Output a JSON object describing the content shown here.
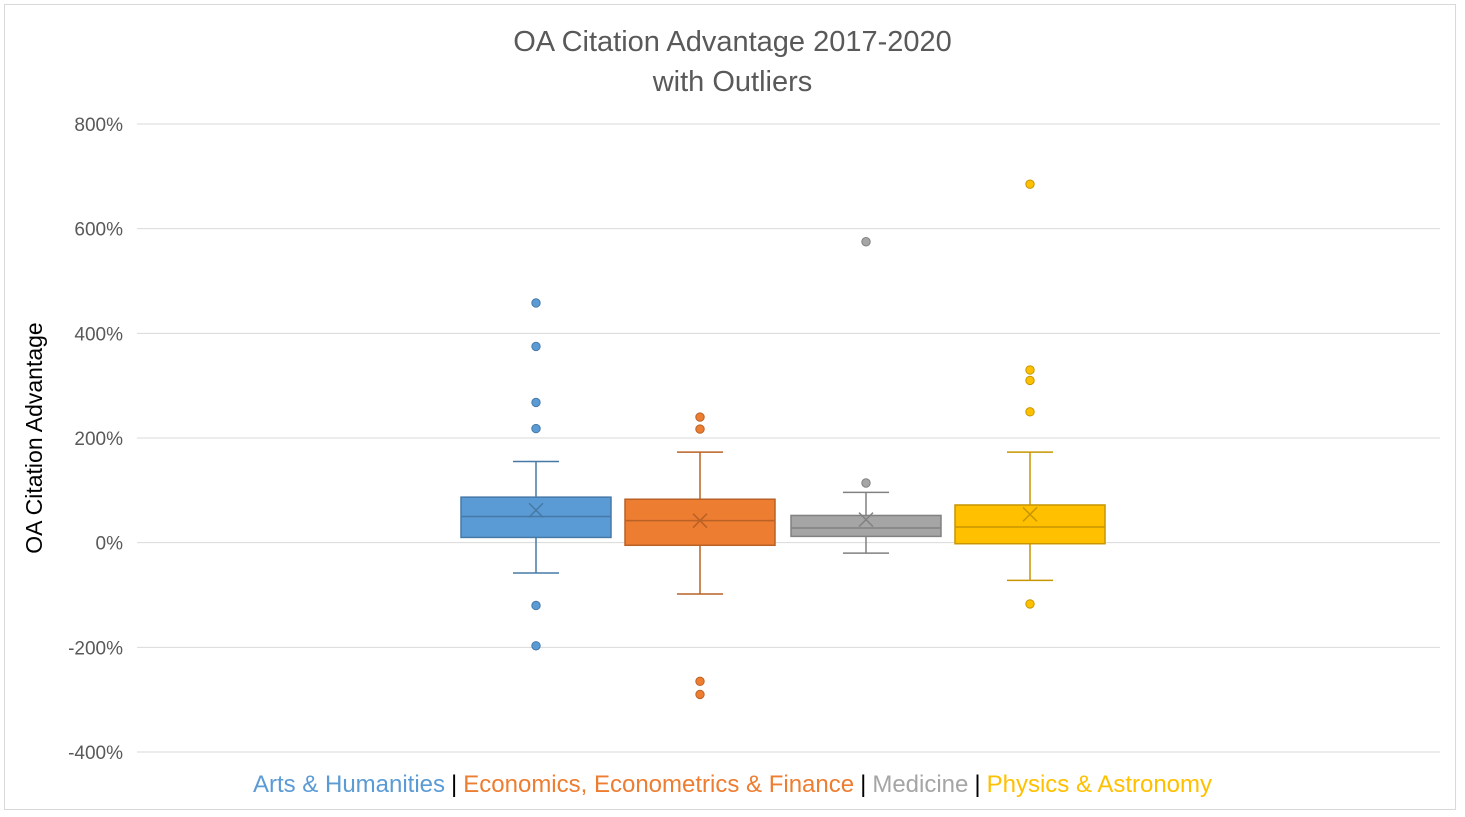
{
  "chart_data": {
    "type": "box",
    "title": "OA Citation Advantage 2017-2020",
    "subtitle": "with Outliers",
    "ylabel": "OA Citation Advantage",
    "xlabel": "",
    "ylim": [
      -400,
      800
    ],
    "yticks": [
      "800%",
      "600%",
      "400%",
      "200%",
      "0%",
      "-200%",
      "-400%"
    ],
    "ytick_values": [
      800,
      600,
      400,
      200,
      0,
      -200,
      -400
    ],
    "grid": true,
    "legend_position": "bottom",
    "legend_separator": "|",
    "series": [
      {
        "name": "Arts & Humanities",
        "color": "#5b9bd5",
        "whisker_low": -58,
        "q1": 10,
        "median": 50,
        "q3": 87,
        "whisker_high": 155,
        "mean": 62,
        "outliers": [
          458,
          375,
          268,
          218,
          -120,
          -197
        ]
      },
      {
        "name": "Economics, Econometrics & Finance",
        "color": "#ed7d31",
        "whisker_low": -98,
        "q1": -5,
        "median": 42,
        "q3": 83,
        "whisker_high": 173,
        "mean": 42,
        "outliers": [
          240,
          217,
          -265,
          -290
        ]
      },
      {
        "name": "Medicine",
        "color": "#a5a5a5",
        "whisker_low": -20,
        "q1": 12,
        "median": 28,
        "q3": 52,
        "whisker_high": 96,
        "mean": 44,
        "outliers": [
          575,
          114
        ]
      },
      {
        "name": "Physics & Astronomy",
        "color": "#ffc000",
        "whisker_low": -72,
        "q1": -2,
        "median": 30,
        "q3": 72,
        "whisker_high": 173,
        "mean": 54,
        "outliers": [
          685,
          330,
          310,
          250,
          -117
        ]
      }
    ]
  }
}
